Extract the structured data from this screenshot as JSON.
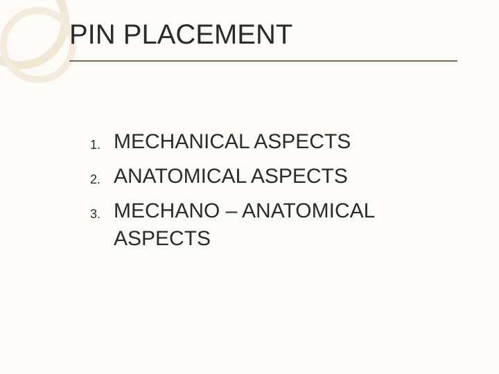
{
  "slide": {
    "title": "PIN PLACEMENT",
    "title_fontsize": 40,
    "title_color": "#2b2b2b",
    "rule_color": "#7a6a55",
    "background_color": "#fdfbf7",
    "decor_ring_color": "#f0e7d5",
    "list": {
      "marker_fontsize": 18,
      "item_fontsize": 30,
      "text_color": "#2b2b2b",
      "items": [
        {
          "marker": "1.",
          "text": "MECHANICAL  ASPECTS"
        },
        {
          "marker": "2.",
          "text": "ANATOMICAL  ASPECTS"
        },
        {
          "marker": "3.",
          "text": "MECHANO – ANATOMICAL ASPECTS"
        }
      ]
    }
  }
}
